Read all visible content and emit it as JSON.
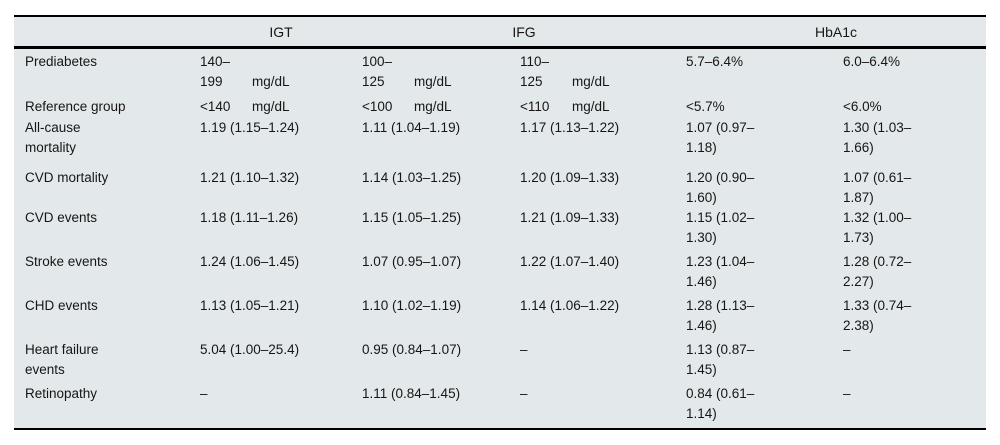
{
  "table": {
    "header": {
      "corner": "",
      "igt": "IGT",
      "ifg": "IFG",
      "hba1c": "HbA1c"
    },
    "rows": [
      {
        "label": "Prediabetes",
        "cells": [
          "140–\n199\tmg/dL",
          "100–\n125\tmg/dL",
          "110–\n125\tmg/dL",
          "5.7–6.4%",
          "6.0–6.4%"
        ]
      },
      {
        "label": "Reference group",
        "cells": [
          "<140\tmg/dL",
          "<100\tmg/dL",
          "<110\tmg/dL",
          "<5.7%",
          "<6.0%"
        ]
      },
      {
        "label": "All-cause\nmortality",
        "cells": [
          "1.19 (1.15–1.24)",
          "1.11 (1.04–1.19)",
          "1.17 (1.13–1.22)",
          "1.07 (0.97–\n1.18)",
          "1.30 (1.03–\n1.66)"
        ]
      },
      {
        "label": "CVD mortality",
        "cells": [
          "1.21 (1.10–1.32)",
          "1.14 (1.03–1.25)",
          "1.20 (1.09–1.33)",
          "1.20 (0.90–\n1.60)",
          "1.07 (0.61–\n1.87)"
        ]
      },
      {
        "label": "CVD events",
        "cells": [
          "1.18 (1.11–1.26)",
          "1.15 (1.05–1.25)",
          "1.21 (1.09–1.33)",
          "1.15 (1.02–\n1.30)",
          "1.32 (1.00–\n1.73)"
        ]
      },
      {
        "label": "Stroke events",
        "cells": [
          "1.24 (1.06–1.45)",
          "1.07 (0.95–1.07)",
          "1.22 (1.07–1.40)",
          "1.23 (1.04–\n1.46)",
          "1.28 (0.72–\n2.27)"
        ]
      },
      {
        "label": "CHD events",
        "cells": [
          "1.13 (1.05–1.21)",
          "1.10 (1.02–1.19)",
          "1.14 (1.06–1.22)",
          "1.28 (1.13–\n1.46)",
          "1.33 (0.74–\n2.38)"
        ]
      },
      {
        "label": "Heart failure\nevents",
        "cells": [
          "5.04 (1.00–25.4)",
          "0.95 (0.84–1.07)",
          "–",
          "1.13 (0.87–\n1.45)",
          "–"
        ]
      },
      {
        "label": "Retinopathy",
        "cells": [
          "–",
          "1.11 (0.84–1.45)",
          "–",
          "0.84 (0.61–\n1.14)",
          "–"
        ]
      }
    ],
    "colors": {
      "table_background": "#e3e8ea",
      "rule": "#000000",
      "text": "#161616"
    }
  }
}
